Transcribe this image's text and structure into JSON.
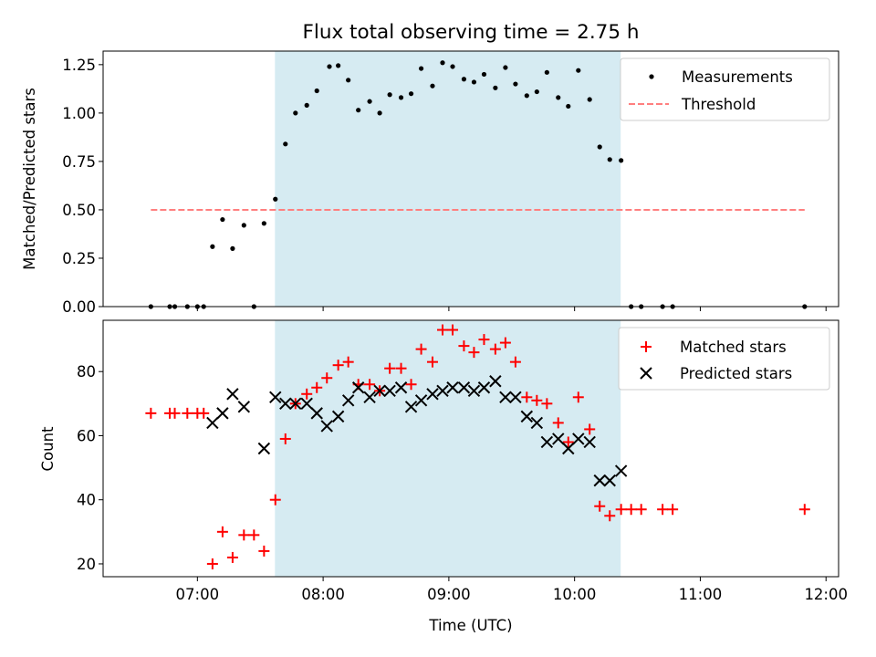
{
  "title": "Flux total observing time = 2.75 h",
  "colors": {
    "measurement": "#000000",
    "threshold": "#ff7f7f",
    "matched": "#ff0000",
    "predicted": "#000000",
    "shade": "#add8e6"
  },
  "shade_span_hours": [
    7.6167,
    10.3667
  ],
  "x_axis": {
    "label": "Time (UTC)",
    "xlim_hours": [
      6.25,
      12.1
    ],
    "ticks": [
      {
        "h": 7,
        "label": "07:00"
      },
      {
        "h": 8,
        "label": "08:00"
      },
      {
        "h": 9,
        "label": "09:00"
      },
      {
        "h": 10,
        "label": "10:00"
      },
      {
        "h": 11,
        "label": "11:00"
      },
      {
        "h": 12,
        "label": "12:00"
      }
    ]
  },
  "chart_data": [
    {
      "type": "scatter",
      "ylabel": "Matched/Predicted stars",
      "ylim": [
        0,
        1.32
      ],
      "yticks": [
        "0.00",
        "0.25",
        "0.50",
        "0.75",
        "1.00",
        "1.25"
      ],
      "legend": "top-right",
      "series": [
        {
          "name": "Measurements",
          "marker": "dot",
          "points": [
            [
              6.63,
              0
            ],
            [
              6.78,
              0
            ],
            [
              6.82,
              0
            ],
            [
              6.92,
              0
            ],
            [
              7.0,
              0
            ],
            [
              7.05,
              0
            ],
            [
              7.12,
              0.31
            ],
            [
              7.2,
              0.45
            ],
            [
              7.28,
              0.3
            ],
            [
              7.37,
              0.42
            ],
            [
              7.45,
              0
            ],
            [
              7.53,
              0.43
            ],
            [
              7.62,
              0.555
            ],
            [
              7.7,
              0.84
            ],
            [
              7.78,
              1.0
            ],
            [
              7.87,
              1.04
            ],
            [
              7.95,
              1.115
            ],
            [
              8.05,
              1.24
            ],
            [
              8.12,
              1.245
            ],
            [
              8.2,
              1.17
            ],
            [
              8.28,
              1.015
            ],
            [
              8.37,
              1.06
            ],
            [
              8.45,
              1.0
            ],
            [
              8.53,
              1.095
            ],
            [
              8.62,
              1.08
            ],
            [
              8.7,
              1.1
            ],
            [
              8.78,
              1.23
            ],
            [
              8.87,
              1.14
            ],
            [
              8.95,
              1.26
            ],
            [
              9.03,
              1.24
            ],
            [
              9.12,
              1.175
            ],
            [
              9.2,
              1.16
            ],
            [
              9.28,
              1.2
            ],
            [
              9.37,
              1.13
            ],
            [
              9.45,
              1.235
            ],
            [
              9.53,
              1.15
            ],
            [
              9.62,
              1.09
            ],
            [
              9.7,
              1.11
            ],
            [
              9.78,
              1.21
            ],
            [
              9.87,
              1.08
            ],
            [
              9.95,
              1.035
            ],
            [
              10.03,
              1.22
            ],
            [
              10.12,
              1.07
            ],
            [
              10.2,
              0.825
            ],
            [
              10.28,
              0.76
            ],
            [
              10.37,
              0.755
            ],
            [
              10.45,
              0
            ],
            [
              10.53,
              0
            ],
            [
              10.7,
              0
            ],
            [
              10.78,
              0
            ],
            [
              11.83,
              0
            ]
          ]
        },
        {
          "name": "Threshold",
          "marker": "dashed-line",
          "points": [
            [
              6.63,
              0.5
            ],
            [
              11.83,
              0.5
            ]
          ]
        }
      ]
    },
    {
      "type": "scatter",
      "ylabel": "Count",
      "ylim": [
        16,
        96
      ],
      "yticks": [
        "20",
        "40",
        "60",
        "80"
      ],
      "legend": "top-right",
      "series": [
        {
          "name": "Matched stars",
          "marker": "plus",
          "points": [
            [
              6.63,
              67
            ],
            [
              6.78,
              67
            ],
            [
              6.82,
              67
            ],
            [
              6.92,
              67
            ],
            [
              7.0,
              67
            ],
            [
              7.05,
              67
            ],
            [
              7.12,
              20
            ],
            [
              7.2,
              30
            ],
            [
              7.28,
              22
            ],
            [
              7.37,
              29
            ],
            [
              7.45,
              29
            ],
            [
              7.53,
              24
            ],
            [
              7.62,
              40
            ],
            [
              7.7,
              59
            ],
            [
              7.78,
              70
            ],
            [
              7.87,
              73
            ],
            [
              7.95,
              75
            ],
            [
              8.03,
              78
            ],
            [
              8.12,
              82
            ],
            [
              8.2,
              83
            ],
            [
              8.28,
              76
            ],
            [
              8.37,
              76
            ],
            [
              8.45,
              74
            ],
            [
              8.53,
              81
            ],
            [
              8.62,
              81
            ],
            [
              8.7,
              76
            ],
            [
              8.78,
              87
            ],
            [
              8.87,
              83
            ],
            [
              8.95,
              93
            ],
            [
              9.03,
              93
            ],
            [
              9.12,
              88
            ],
            [
              9.2,
              86
            ],
            [
              9.28,
              90
            ],
            [
              9.37,
              87
            ],
            [
              9.45,
              89
            ],
            [
              9.53,
              83
            ],
            [
              9.62,
              72
            ],
            [
              9.7,
              71
            ],
            [
              9.78,
              70
            ],
            [
              9.87,
              64
            ],
            [
              9.95,
              58
            ],
            [
              10.03,
              72
            ],
            [
              10.12,
              62
            ],
            [
              10.2,
              38
            ],
            [
              10.28,
              35
            ],
            [
              10.37,
              37
            ],
            [
              10.45,
              37
            ],
            [
              10.53,
              37
            ],
            [
              10.7,
              37
            ],
            [
              10.78,
              37
            ],
            [
              11.83,
              37
            ]
          ]
        },
        {
          "name": "Predicted stars",
          "marker": "x",
          "points": [
            [
              7.12,
              64
            ],
            [
              7.2,
              67
            ],
            [
              7.28,
              73
            ],
            [
              7.37,
              69
            ],
            [
              7.53,
              56
            ],
            [
              7.62,
              72
            ],
            [
              7.7,
              70
            ],
            [
              7.78,
              70
            ],
            [
              7.87,
              70
            ],
            [
              7.95,
              67
            ],
            [
              8.03,
              63
            ],
            [
              8.12,
              66
            ],
            [
              8.2,
              71
            ],
            [
              8.28,
              75
            ],
            [
              8.37,
              72
            ],
            [
              8.45,
              74
            ],
            [
              8.53,
              74
            ],
            [
              8.62,
              75
            ],
            [
              8.7,
              69
            ],
            [
              8.78,
              71
            ],
            [
              8.87,
              73
            ],
            [
              8.95,
              74
            ],
            [
              9.03,
              75
            ],
            [
              9.12,
              75
            ],
            [
              9.2,
              74
            ],
            [
              9.28,
              75
            ],
            [
              9.37,
              77
            ],
            [
              9.45,
              72
            ],
            [
              9.53,
              72
            ],
            [
              9.62,
              66
            ],
            [
              9.7,
              64
            ],
            [
              9.78,
              58
            ],
            [
              9.87,
              59
            ],
            [
              9.95,
              56
            ],
            [
              10.03,
              59
            ],
            [
              10.12,
              58
            ],
            [
              10.2,
              46
            ],
            [
              10.28,
              46
            ],
            [
              10.37,
              49
            ]
          ]
        }
      ]
    }
  ]
}
